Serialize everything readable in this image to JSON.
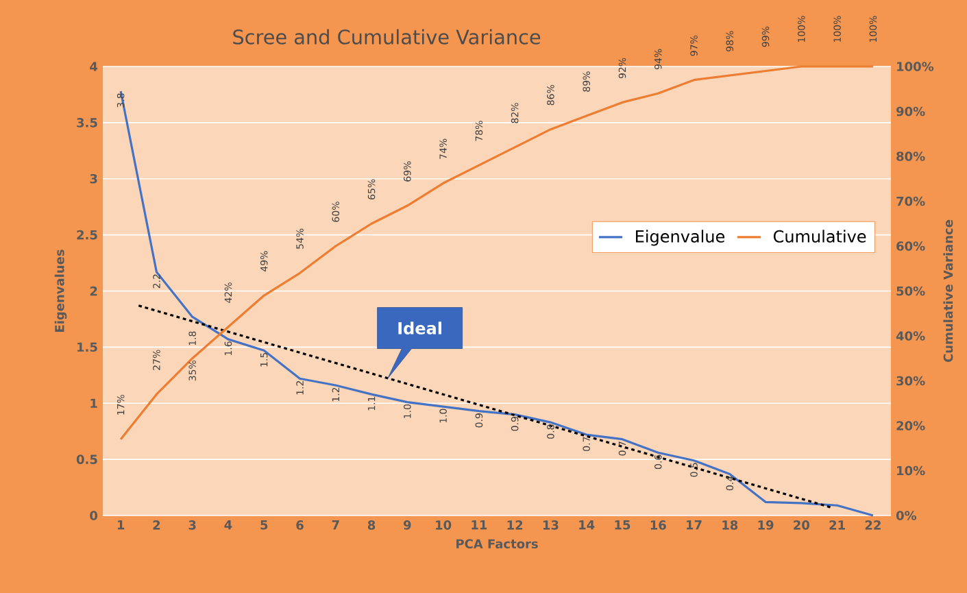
{
  "chart_data": {
    "type": "line",
    "title": "Scree and Cumulative Variance",
    "xlabel": "PCA Factors",
    "ylabel": "Eigenvalues",
    "y2label": "Cumulative Variance",
    "x": [
      1,
      2,
      3,
      4,
      5,
      6,
      7,
      8,
      9,
      10,
      11,
      12,
      13,
      14,
      15,
      16,
      17,
      18,
      19,
      20,
      21,
      22
    ],
    "xlim": [
      0.5,
      22.5
    ],
    "xticks": [
      1,
      2,
      3,
      4,
      5,
      6,
      7,
      8,
      9,
      10,
      11,
      12,
      13,
      14,
      15,
      16,
      17,
      18,
      19,
      20,
      21,
      22
    ],
    "ylim": [
      0,
      4
    ],
    "yticks": [
      0,
      0.5,
      1,
      1.5,
      2,
      2.5,
      3,
      3.5,
      4
    ],
    "y2lim": [
      0,
      100
    ],
    "y2ticks": [
      {
        "value": 0,
        "label": "0%"
      },
      {
        "value": 10,
        "label": "10%"
      },
      {
        "value": 20,
        "label": "20%"
      },
      {
        "value": 30,
        "label": "30%"
      },
      {
        "value": 40,
        "label": "40%"
      },
      {
        "value": 50,
        "label": "50%"
      },
      {
        "value": 60,
        "label": "60%"
      },
      {
        "value": 70,
        "label": "70%"
      },
      {
        "value": 80,
        "label": "80%"
      },
      {
        "value": 90,
        "label": "90%"
      },
      {
        "value": 100,
        "label": "100%"
      }
    ],
    "grid": "y",
    "legend": "right",
    "series": [
      {
        "name": "Eigenvalue",
        "color": "#4472c4",
        "values": [
          3.78,
          2.17,
          1.77,
          1.57,
          1.47,
          1.22,
          1.16,
          1.08,
          1.01,
          0.97,
          0.93,
          0.9,
          0.83,
          0.72,
          0.68,
          0.56,
          0.49,
          0.37,
          0.12,
          0.11,
          0.09,
          0.0
        ],
        "value_labels": [
          "3.8",
          "2.2",
          "1.8",
          "1.6",
          "1.5",
          "1.2",
          "1.2",
          "1.1",
          "1.0",
          "1.0",
          "0.9",
          "0.9",
          "0.8",
          "0.7",
          "0.7",
          "0.6",
          "0.5",
          "0.4",
          null,
          null,
          null,
          null
        ]
      },
      {
        "name": "Cumulative",
        "color": "#ed7d31",
        "axis": "y2",
        "values": [
          17,
          27,
          35,
          42,
          49,
          54,
          60,
          65,
          69,
          74,
          78,
          82,
          86,
          89,
          92,
          94,
          97,
          98,
          99,
          100,
          100,
          100
        ],
        "value_labels": [
          "17%",
          "27%",
          "35%",
          "42%",
          "49%",
          "54%",
          "60%",
          "65%",
          "69%",
          "74%",
          "78%",
          "82%",
          "86%",
          "89%",
          "92%",
          "94%",
          "97%",
          "98%",
          "99%",
          "100%",
          "100%",
          "100%"
        ]
      },
      {
        "type": "line",
        "color": "#000000",
        "line_style": "dotted",
        "x": [
          1.5,
          20.85
        ],
        "values": [
          1.87,
          0.07
        ]
      }
    ],
    "annotations": [
      {
        "text": "Ideal",
        "x": 8.45,
        "y": 1.22
      }
    ]
  }
}
